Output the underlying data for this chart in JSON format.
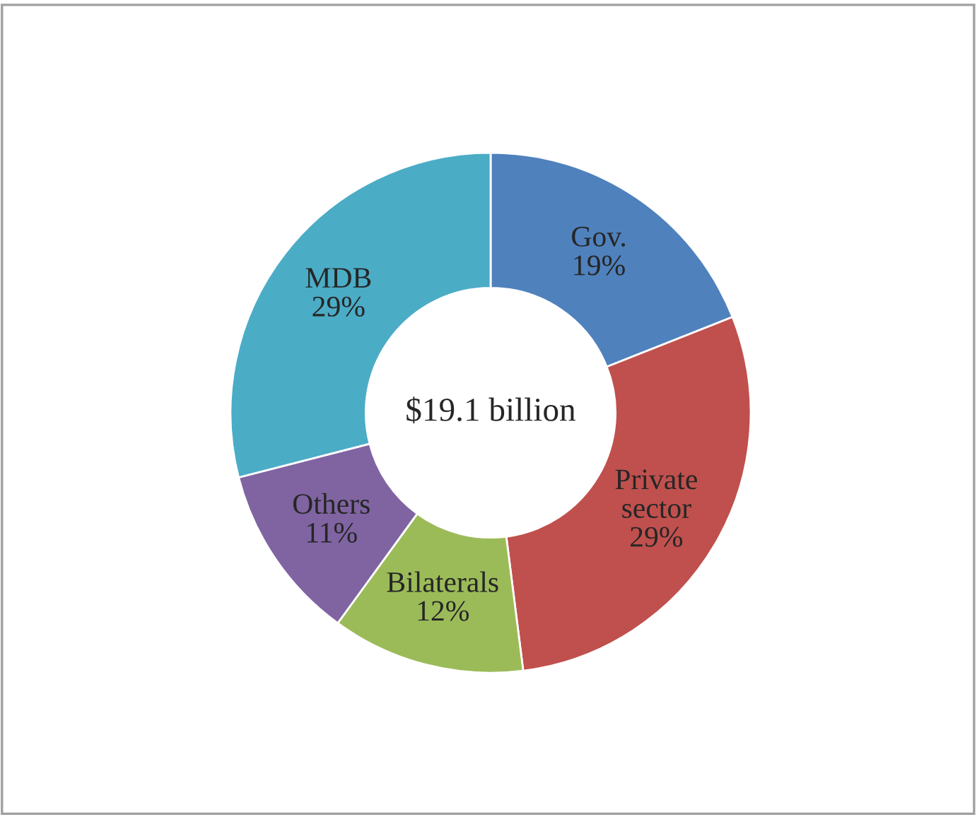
{
  "chart_data": {
    "type": "donut",
    "categories": [
      "Gov.",
      "Private sector",
      "Bilaterals",
      "Others",
      "MDB"
    ],
    "values": [
      19,
      29,
      12,
      11,
      29
    ],
    "value_labels": [
      "19%",
      "29%",
      "12%",
      "11%",
      "29%"
    ],
    "colors": [
      "#4f81bd",
      "#c0504d",
      "#9bbb59",
      "#8064a2",
      "#4bacc6"
    ],
    "annotations": [
      "$19.1 billion"
    ],
    "legend": false
  }
}
